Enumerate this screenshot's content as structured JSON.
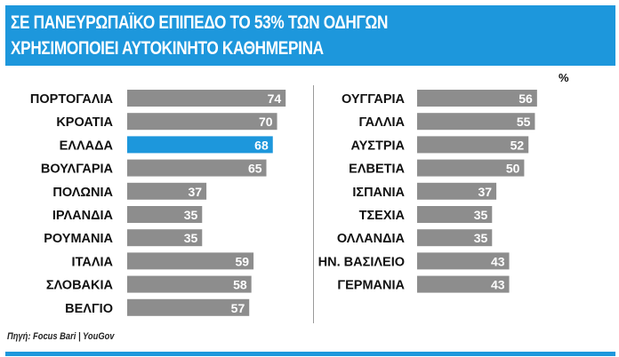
{
  "header": {
    "line1": "ΣΕ ΠΑΝΕΥΡΩΠΑΪΚΟ ΕΠΙΠΕΔΟ ΤΟ 53% ΤΩΝ ΟΔΗΓΩΝ",
    "line2": "ΧΡΗΣΙΜΟΠΟΙΕΙ ΑΥΤΟΚΙΝΗΤΟ ΚΑΘΗΜΕΡΙΝΑ"
  },
  "unit": "%",
  "source": "Πηγή: Focus Bari | YouGov",
  "colors": {
    "bar": "#8d8d8d",
    "highlight": "#1d97dc",
    "header": "#1d97dc"
  },
  "chart_data": [
    {
      "type": "bar",
      "orientation": "horizontal",
      "categories": [
        "ΠΟΡΤΟΓΑΛΙΑ",
        "ΚΡΟΑΤΙΑ",
        "ΕΛΛΑΔΑ",
        "ΒΟΥΛΓΑΡΙΑ",
        "ΠΟΛΩΝΙΑ",
        "ΙΡΛΑΝΔΙΑ",
        "ΡΟΥΜΑΝΙΑ",
        "ΙΤΑΛΙΑ",
        "ΣΛΟΒΑΚΙΑ",
        "ΒΕΛΓΙΟ"
      ],
      "values": [
        74,
        70,
        68,
        65,
        37,
        35,
        35,
        59,
        58,
        57
      ],
      "highlight": "ΕΛΛΑΔΑ"
    },
    {
      "type": "bar",
      "orientation": "horizontal",
      "categories": [
        "ΟΥΓΓΑΡΙΑ",
        "ΓΑΛΛΙΑ",
        "ΑΥΣΤΡΙΑ",
        "ΕΛΒΕΤΙΑ",
        "ΙΣΠΑΝΙΑ",
        "ΤΣΕΧΙΑ",
        "ΟΛΛΑΝΔΙΑ",
        "ΗΝ. ΒΑΣΙΛΕΙΟ",
        "ΓΕΡΜΑΝΙΑ"
      ],
      "values": [
        56,
        55,
        52,
        50,
        37,
        35,
        35,
        43,
        43
      ]
    }
  ]
}
